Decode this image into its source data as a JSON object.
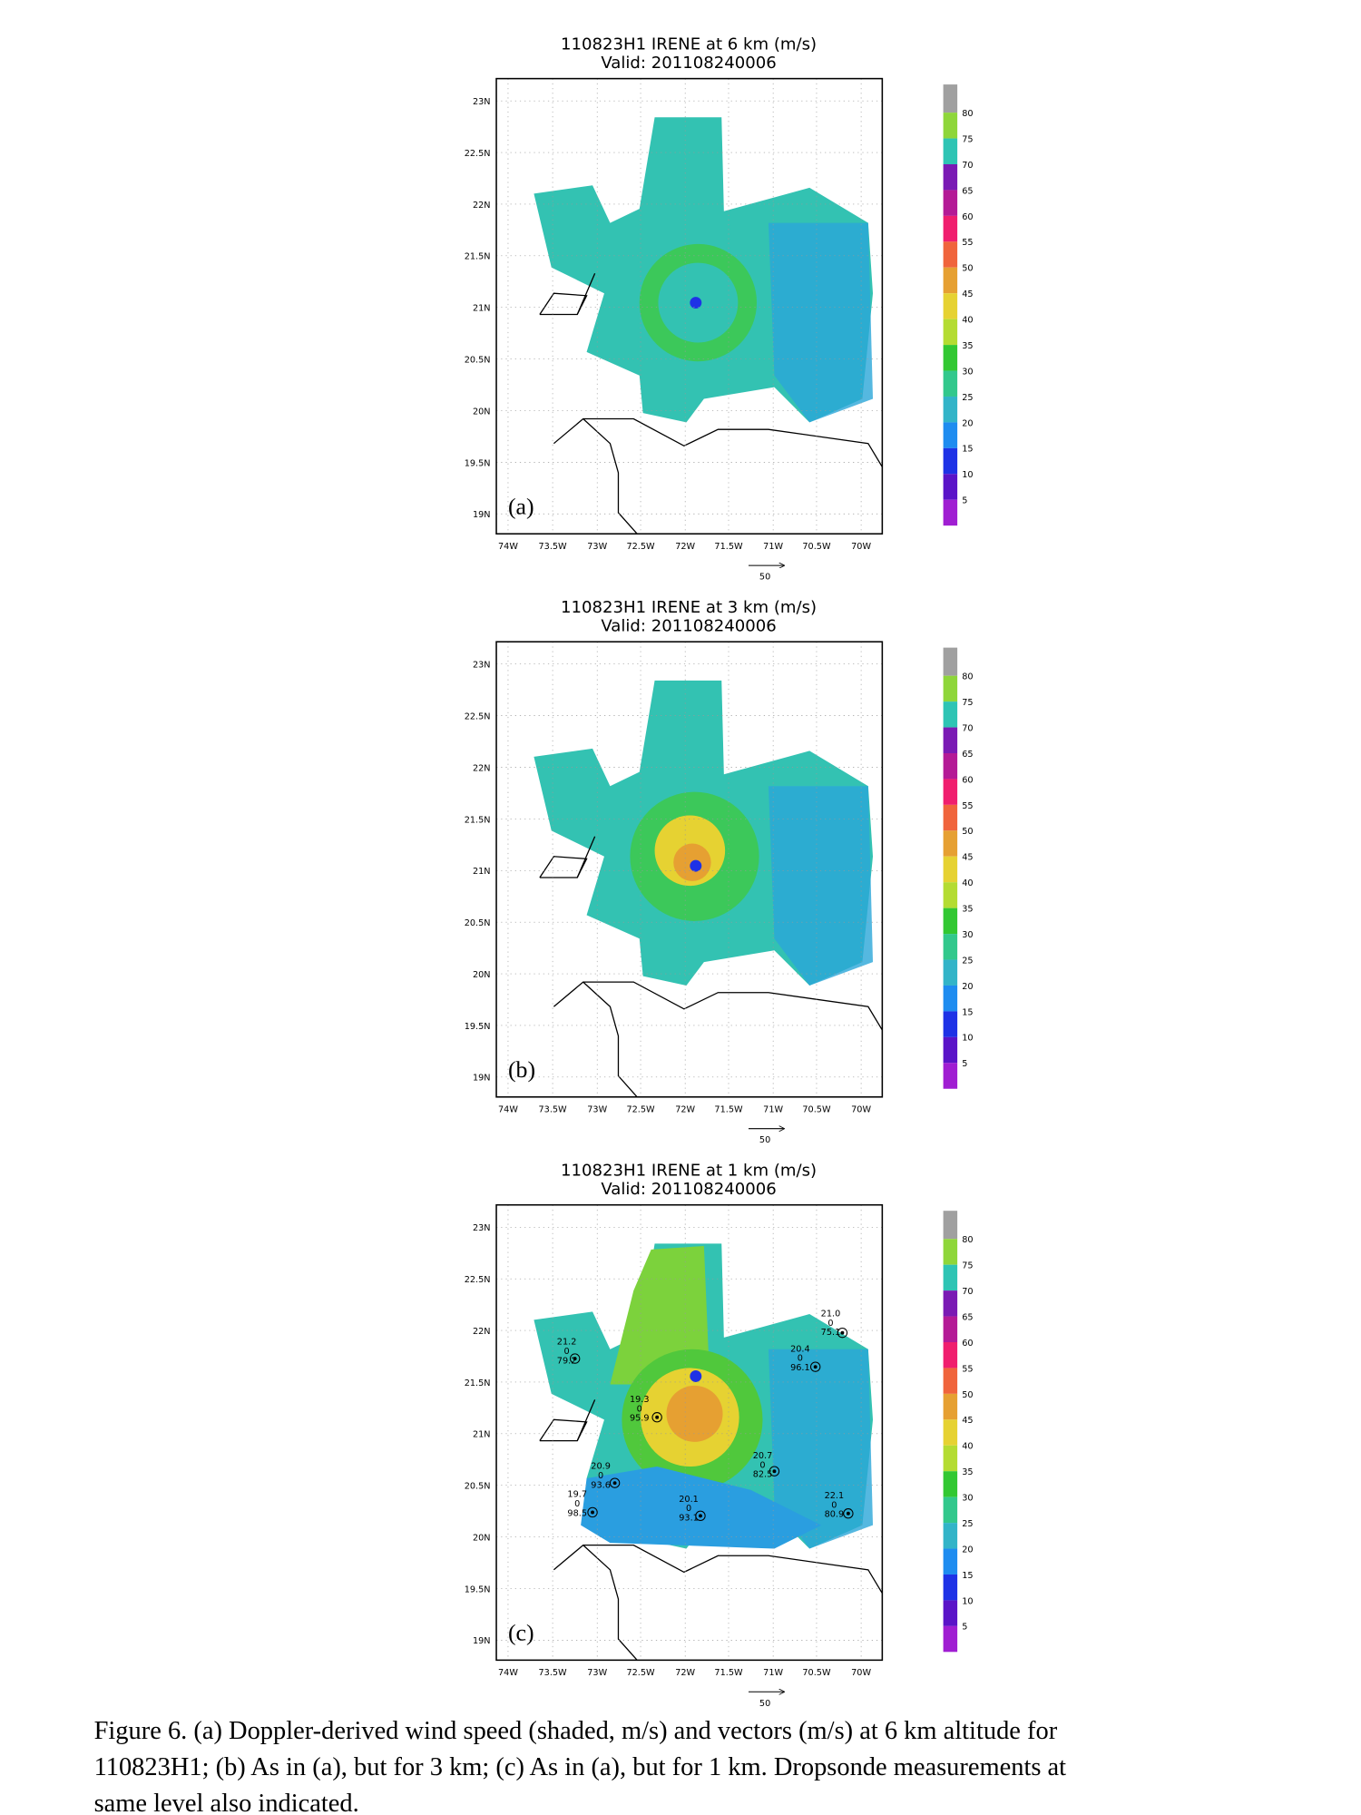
{
  "figure": {
    "panels": [
      {
        "title": "110823H1 IRENE at 6 km (m/s)",
        "valid": "Valid: 201108240006",
        "panel_label": "(a)"
      },
      {
        "title": "110823H1 IRENE at 3 km (m/s)",
        "valid": "Valid: 201108240006",
        "panel_label": "(b)"
      },
      {
        "title": "110823H1 IRENE at 1 km (m/s)",
        "valid": "Valid: 201108240006",
        "panel_label": "(c)"
      }
    ],
    "lat_labels": [
      "23N",
      "22.5N",
      "22N",
      "21.5N",
      "21N",
      "20.5N",
      "20N",
      "19.5N",
      "19N"
    ],
    "lon_labels": [
      "74W",
      "73.5W",
      "73W",
      "72.5W",
      "72W",
      "71.5W",
      "71W",
      "70.5W",
      "70W"
    ],
    "colorbar_labels": [
      80,
      75,
      70,
      65,
      60,
      55,
      50,
      45,
      40,
      35,
      30,
      25,
      20,
      15,
      10,
      5
    ],
    "colorbar_colors": [
      "#a0a0a0",
      "#8ed63a",
      "#2ec4b4",
      "#7a1ab4",
      "#b41a96",
      "#f01e6e",
      "#f0643c",
      "#e6a032",
      "#e6d232",
      "#b4dc32",
      "#32c832",
      "#32c88c",
      "#32b4c8",
      "#1e8cf0",
      "#1e32e6",
      "#5a14c8",
      "#a01ed2"
    ],
    "vector_scale": 50,
    "dropsondes": [
      [
        "21.2",
        "0",
        "79.2"
      ],
      [
        "21.0",
        "0",
        "75.1"
      ],
      [
        "20.4",
        "0",
        "96.1"
      ],
      [
        "19.3",
        "0",
        "95.9"
      ],
      [
        "20.9",
        "0",
        "93.6"
      ],
      [
        "19.7",
        "0",
        "98.5"
      ],
      [
        "20.1",
        "0",
        "93.1"
      ],
      [
        "20.7",
        "0",
        "82.5"
      ],
      [
        "22.1",
        "0",
        "80.9"
      ]
    ],
    "caption": [
      "Figure 6.  (a) Doppler-derived wind speed (shaded, m/s) and vectors (m/s) at 6 km altitude for",
      "110823H1; (b) As in (a), but for 3 km; (c) As in (a), but for 1 km.  Dropsonde measurements at",
      "same level also indicated."
    ]
  }
}
